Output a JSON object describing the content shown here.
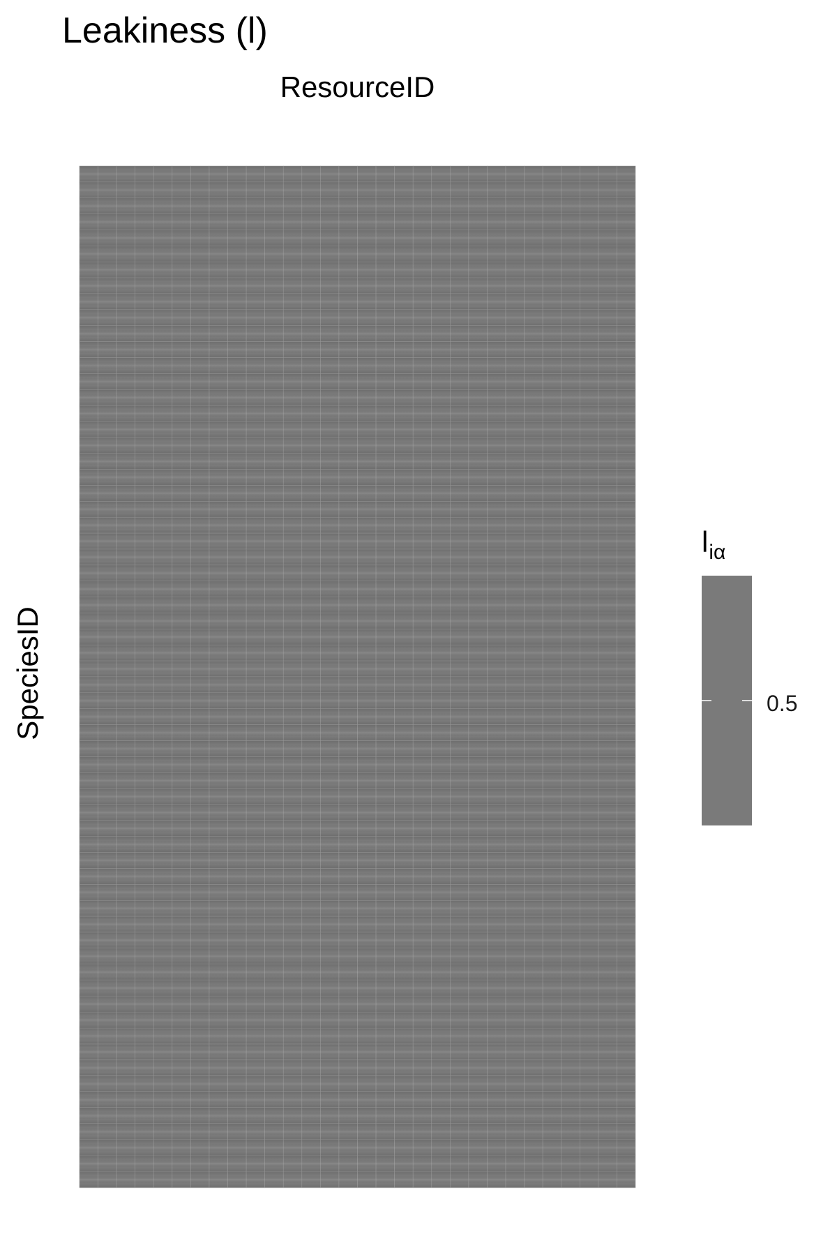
{
  "chart_data": {
    "type": "heatmap",
    "title": "Leakiness (l)",
    "xlabel": "ResourceID",
    "ylabel": "SpeciesID",
    "n_columns": 30,
    "n_rows": 64,
    "value": 0.5,
    "fill_color": "#7a7a7a",
    "legend": {
      "title_main": "l",
      "title_sub": "iα",
      "placement": "right",
      "ticks": [
        0.5
      ],
      "tick_labels": [
        "0.5"
      ]
    },
    "grid": false
  }
}
